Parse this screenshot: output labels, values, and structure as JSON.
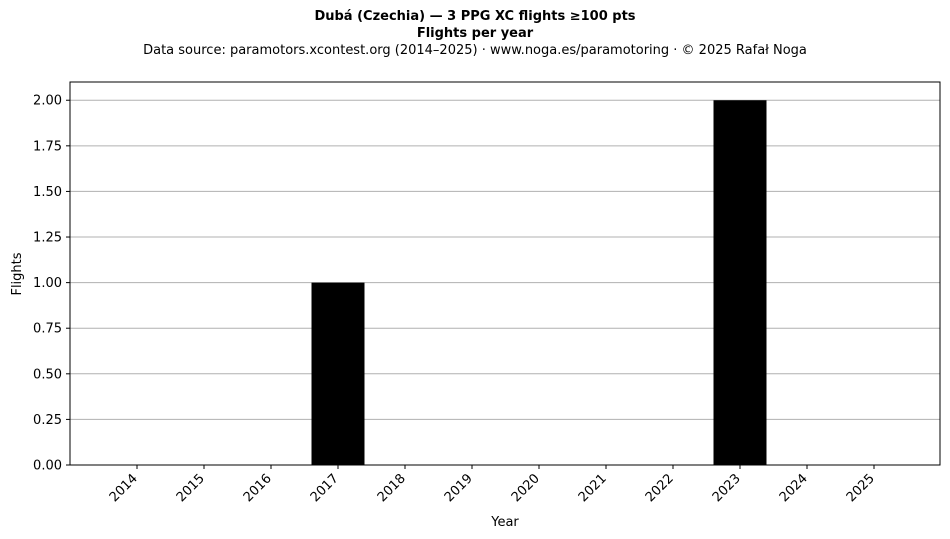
{
  "chart_data": {
    "type": "bar",
    "title": "Dubá (Czechia)  —  3 PPG XC flights ≥100 pts",
    "title_line2": "Flights per year",
    "subtitle": "Data source: paramotors.xcontest.org (2014–2025)  ·  www.noga.es/paramotoring  ·  © 2025 Rafał Noga",
    "xlabel": "Year",
    "ylabel": "Flights",
    "categories": [
      "2014",
      "2015",
      "2016",
      "2017",
      "2018",
      "2019",
      "2020",
      "2021",
      "2022",
      "2023",
      "2024",
      "2025"
    ],
    "values": [
      0,
      0,
      0,
      1,
      0,
      0,
      0,
      0,
      0,
      2,
      0,
      0
    ],
    "ylim": [
      0,
      2.1
    ],
    "yticks": [
      "0.00",
      "0.25",
      "0.50",
      "0.75",
      "1.00",
      "1.25",
      "1.50",
      "1.75",
      "2.00"
    ],
    "grid": "horizontal",
    "bar_color": "#000000",
    "grid_color": "#b0b0b0"
  }
}
